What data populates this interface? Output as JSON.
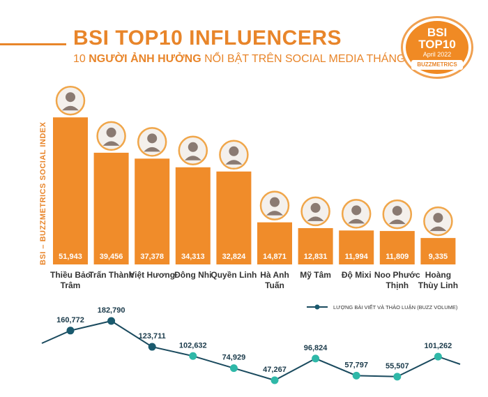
{
  "header": {
    "title": "BSI TOP10 INFLUENCERS",
    "subtitle_prefix": "10 ",
    "subtitle_bold": "NGƯỜI ẢNH HƯỞNG",
    "subtitle_rest": " NỔI BẬT TRÊN SOCIAL MEDIA THÁNG 04/2022"
  },
  "badge": {
    "line1": "BSI",
    "line2": "TOP10",
    "line3": "April 2022",
    "brand": "BUZZMETRICS"
  },
  "colors": {
    "accent": "#e8852a",
    "bar": "#f08c2a",
    "line": "#1a4a5e",
    "point_dark": "#1a5a6e",
    "point_teal": "#2fb8a8"
  },
  "chart_data": [
    {
      "type": "bar",
      "ylabel": "BSI – BUZZMETRICS SOCIAL INDEX",
      "categories": [
        "Thiều Bảo Trâm",
        "Trấn Thành",
        "Việt Hương",
        "Đông Nhi",
        "Quyền Linh",
        "Hà Anh Tuấn",
        "Mỹ Tâm",
        "Độ Mixi",
        "Noo Phước Thịnh",
        "Hoàng Thùy Linh"
      ],
      "category_lines": [
        [
          "Thiều Bảo",
          "Trâm"
        ],
        [
          "Trấn Thành"
        ],
        [
          "Việt Hương"
        ],
        [
          "Đông Nhi"
        ],
        [
          "Quyền Linh"
        ],
        [
          "Hà Anh",
          "Tuấn"
        ],
        [
          "Mỹ Tâm"
        ],
        [
          "Độ Mixi"
        ],
        [
          "Noo Phước",
          "Thịnh"
        ],
        [
          "Hoàng",
          "Thùy Linh"
        ]
      ],
      "values": [
        51943,
        39456,
        37378,
        34313,
        32824,
        14871,
        12831,
        11994,
        11809,
        9335
      ],
      "value_labels": [
        "51,943",
        "39,456",
        "37,378",
        "34,313",
        "32,824",
        "14,871",
        "12,831",
        "11,994",
        "11,809",
        "9,335"
      ],
      "ylim": [
        0,
        52000
      ]
    },
    {
      "type": "line",
      "legend": "LƯỢNG BÀI VIẾT VÀ THẢO LUẬN (BUZZ VOLUME)",
      "legend_position": "top-right",
      "categories": [
        "Thiều Bảo Trâm",
        "Trấn Thành",
        "Việt Hương",
        "Đông Nhi",
        "Quyền Linh",
        "Hà Anh Tuấn",
        "Mỹ Tâm",
        "Độ Mixi",
        "Noo Phước Thịnh",
        "Hoàng Thùy Linh"
      ],
      "values": [
        160772,
        182790,
        123711,
        102632,
        74929,
        47267,
        96824,
        57797,
        55507,
        101262
      ],
      "value_labels": [
        "160,772",
        "182,790",
        "123,711",
        "102,632",
        "74,929",
        "47,267",
        "96,824",
        "57,797",
        "55,507",
        "101,262"
      ],
      "ylim": [
        47267,
        182790
      ]
    }
  ]
}
